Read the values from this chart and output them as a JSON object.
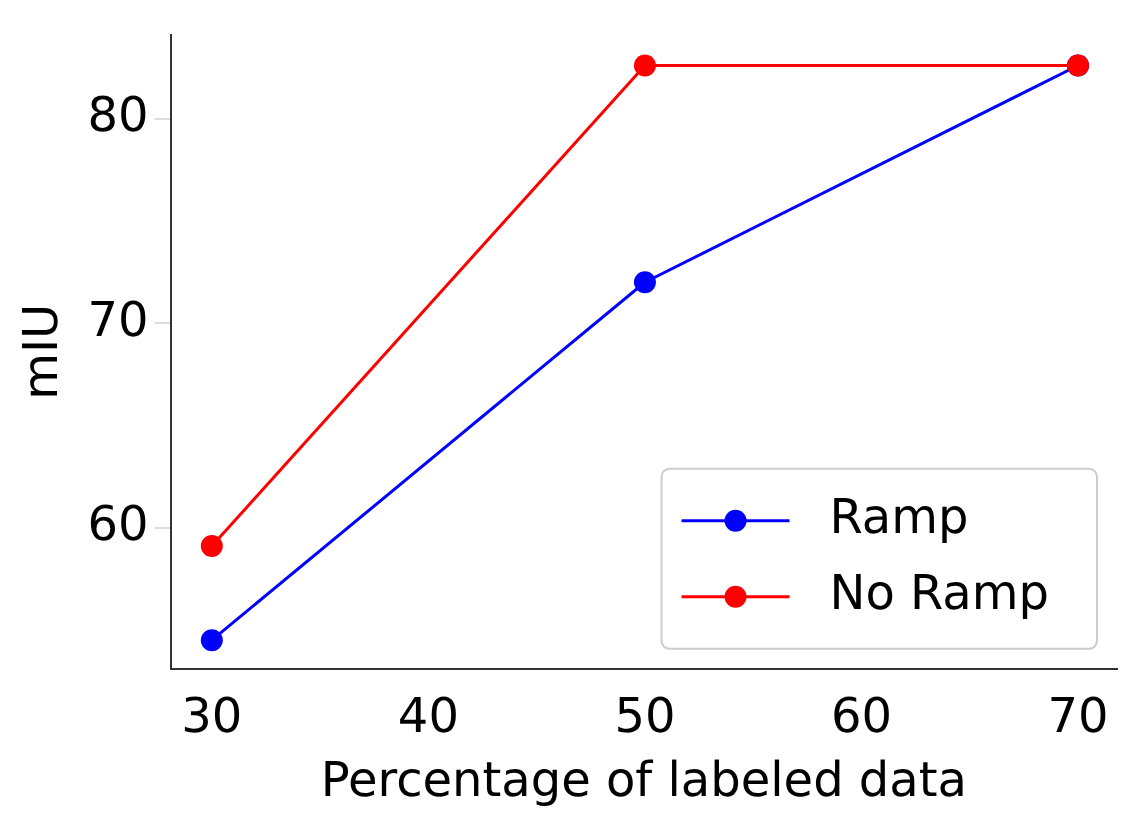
{
  "chart_data": {
    "type": "line",
    "xlabel": "Percentage of labeled data",
    "ylabel": "mIU",
    "x": [
      30,
      50,
      70
    ],
    "series": [
      {
        "name": "Ramp",
        "color": "#0000ff",
        "values": [
          54.5,
          72.0,
          82.6
        ]
      },
      {
        "name": "No Ramp",
        "color": "#ff0000",
        "values": [
          59.1,
          82.6,
          82.6
        ]
      }
    ],
    "xlim": [
      28.1,
      71.8
    ],
    "ylim": [
      53.1,
      84.1
    ],
    "xticks": [
      30,
      40,
      50,
      60,
      70
    ],
    "yticks": [
      60,
      70,
      80
    ],
    "grid": false,
    "legend": "bottom right",
    "marker": "circle",
    "line_style": "solid"
  }
}
